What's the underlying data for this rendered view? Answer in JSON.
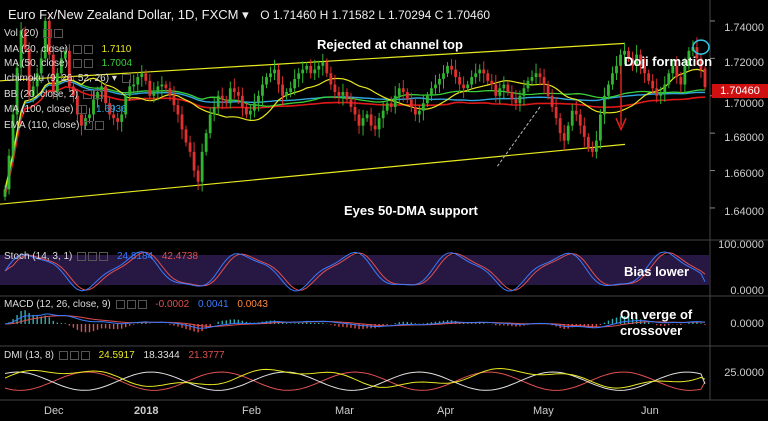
{
  "header": {
    "symbol": "Euro Fx/New Zealand Dollar, 1D, FXCM",
    "open": "O 1.71460",
    "high": "H 1.71582",
    "low": "L 1.70294",
    "close": "C 1.70460"
  },
  "indicators": {
    "vol": "Vol (20)",
    "ma20": "MA (20, close)",
    "ma20_val": "1.7110",
    "ma50": "MA (50, close)",
    "ma50_val": "1.7004",
    "ichimoku": "Ichimoku (9, 26, 52, 26)",
    "bb": "BB (20, close, 2)",
    "ma100": "MA (100, close)",
    "ma100_val": "1.6936",
    "ema110": "EMA (110, close)"
  },
  "annotations": {
    "channel": "Rejected at channel top",
    "doji": "Doji formation",
    "support": "Eyes 50-DMA support",
    "bias": "Bias lower",
    "macd_note": "On verge of crossover"
  },
  "price_tag": "1.70460",
  "stoch": {
    "label": "Stoch (14, 3, 1)",
    "k": "24.8184",
    "d": "42.4738",
    "ticks": [
      "100.0000",
      "0.0000"
    ]
  },
  "macd": {
    "label": "MACD (12, 26, close, 9)",
    "hist": "-0.0002",
    "macd": "0.0041",
    "signal": "0.0043",
    "ticks": [
      "0.0000"
    ]
  },
  "dmi": {
    "label": "DMI (13, 8)",
    "adx": "24.5917",
    "plus_di": "18.3344",
    "minus_di": "21.3777",
    "ticks": [
      "25.0000"
    ]
  },
  "price_axis": [
    "1.74000",
    "1.72000",
    "1.70000",
    "1.68000",
    "1.66000",
    "1.64000"
  ],
  "time_axis": [
    "Dec",
    "2018",
    "Feb",
    "Mar",
    "Apr",
    "May",
    "Jun"
  ],
  "colors": {
    "bull": "#2fb52f",
    "bear": "#e03030",
    "channel": "#e8e820",
    "ma20": "#e8e820",
    "ma50": "#39d039",
    "ma100": "#30a8e0",
    "ema110": "#e01818",
    "stoch_k": "#3a7bff",
    "stoch_d": "#e05050",
    "stoch_band": "#2a1a4a",
    "macd": "#3a7bff",
    "signal": "#e05050",
    "adx": "#e8e820",
    "plus_di": "#e0e0e0",
    "minus_di": "#e05050",
    "price_tag": "#d01010"
  },
  "chart_data": [
    {
      "type": "candlestick",
      "title": "Euro Fx/New Zealand Dollar, 1D, FXCM",
      "ylim": [
        1.625,
        1.748
      ],
      "x_ticks": [
        "Dec",
        "2018",
        "Feb",
        "Mar",
        "Apr",
        "May",
        "Jun"
      ],
      "y_ticks": [
        1.74,
        1.72,
        1.7,
        1.68,
        1.66,
        1.64
      ],
      "last": {
        "open": 1.7146,
        "high": 1.71582,
        "low": 1.70294,
        "close": 1.7046
      },
      "closes": [
        1.65,
        1.668,
        1.69,
        1.715,
        1.735,
        1.725,
        1.7,
        1.705,
        1.712,
        1.72,
        1.74,
        1.722,
        1.702,
        1.712,
        1.72,
        1.724,
        1.705,
        1.7,
        1.69,
        1.684,
        1.688,
        1.69,
        1.698,
        1.702,
        1.705,
        1.696,
        1.69,
        1.688,
        1.686,
        1.69,
        1.7,
        1.705,
        1.706,
        1.71,
        1.712,
        1.708,
        1.7,
        1.702,
        1.705,
        1.706,
        1.704,
        1.7,
        1.695,
        1.69,
        1.682,
        1.675,
        1.67,
        1.66,
        1.654,
        1.67,
        1.68,
        1.69,
        1.694,
        1.7,
        1.698,
        1.696,
        1.704,
        1.702,
        1.7,
        1.694,
        1.69,
        1.692,
        1.696,
        1.7,
        1.706,
        1.71,
        1.712,
        1.714,
        1.706,
        1.7,
        1.702,
        1.704,
        1.709,
        1.712,
        1.714,
        1.716,
        1.712,
        1.714,
        1.716,
        1.718,
        1.712,
        1.706,
        1.702,
        1.7,
        1.702,
        1.698,
        1.694,
        1.69,
        1.684,
        1.688,
        1.69,
        1.684,
        1.682,
        1.688,
        1.692,
        1.696,
        1.694,
        1.7,
        1.704,
        1.702,
        1.698,
        1.694,
        1.69,
        1.692,
        1.696,
        1.7,
        1.704,
        1.706,
        1.709,
        1.712,
        1.716,
        1.714,
        1.71,
        1.706,
        1.704,
        1.706,
        1.71,
        1.712,
        1.714,
        1.712,
        1.708,
        1.706,
        1.7,
        1.704,
        1.706,
        1.702,
        1.698,
        1.696,
        1.7,
        1.704,
        1.708,
        1.71,
        1.712,
        1.71,
        1.706,
        1.7,
        1.694,
        1.688,
        1.68,
        1.676,
        1.684,
        1.692,
        1.69,
        1.684,
        1.678,
        1.672,
        1.67,
        1.676,
        1.69,
        1.7,
        1.706,
        1.712,
        1.716,
        1.722,
        1.724,
        1.72,
        1.716,
        1.722,
        1.716,
        1.712,
        1.708,
        1.704,
        1.7,
        1.702,
        1.706,
        1.712,
        1.716,
        1.71,
        1.706,
        1.716,
        1.724,
        1.726,
        1.72,
        1.714,
        1.7046
      ],
      "channel": {
        "upper": [
          1.708,
          1.728
        ],
        "lower": [
          1.642,
          1.674
        ]
      },
      "series": [
        {
          "name": "MA (20, close)",
          "last": 1.711
        },
        {
          "name": "MA (50, close)",
          "last": 1.7004
        },
        {
          "name": "MA (100, close)",
          "last": 1.6936
        },
        {
          "name": "EMA (110, close)"
        }
      ]
    },
    {
      "type": "line",
      "title": "Stoch (14, 3, 1)",
      "ylim": [
        0,
        100
      ],
      "series": [
        {
          "name": "%K",
          "last": 24.8184
        },
        {
          "name": "%D",
          "last": 42.4738
        }
      ]
    },
    {
      "type": "line",
      "title": "MACD (12, 26, close, 9)",
      "series": [
        {
          "name": "Histogram",
          "last": -0.0002
        },
        {
          "name": "MACD",
          "last": 0.0041
        },
        {
          "name": "Signal",
          "last": 0.0043
        }
      ]
    },
    {
      "type": "line",
      "title": "DMI (13, 8)",
      "series": [
        {
          "name": "ADX",
          "last": 24.5917
        },
        {
          "name": "+DI",
          "last": 18.3344
        },
        {
          "name": "-DI",
          "last": 21.3777
        }
      ]
    }
  ]
}
